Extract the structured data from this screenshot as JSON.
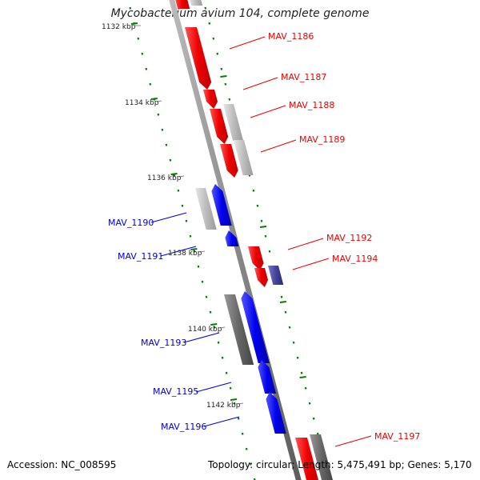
{
  "title": "Mycobacterium avium 104, complete genome",
  "accession": "Accession: NC_008595",
  "summary": "Topology: circular; Length: 5,475,491 bp; Genes: 5,170",
  "colors": {
    "forward_gene": "#ff0000",
    "reverse_gene": "#0000ff",
    "gray_feature": "#bbbbbb",
    "dark_feature": "#666666",
    "tick": "#008000"
  },
  "scale_labels": [
    "1132 kbp",
    "1134 kbp",
    "1136 kbp",
    "1138 kbp",
    "1140 kbp",
    "1142 kbp"
  ],
  "genes": [
    {
      "name": "MAV_1186",
      "strand": "forward"
    },
    {
      "name": "MAV_1187",
      "strand": "forward"
    },
    {
      "name": "MAV_1188",
      "strand": "forward"
    },
    {
      "name": "MAV_1189",
      "strand": "forward"
    },
    {
      "name": "MAV_1190",
      "strand": "reverse"
    },
    {
      "name": "MAV_1191",
      "strand": "reverse"
    },
    {
      "name": "MAV_1192",
      "strand": "forward"
    },
    {
      "name": "MAV_1194",
      "strand": "forward"
    },
    {
      "name": "MAV_1193",
      "strand": "reverse"
    },
    {
      "name": "MAV_1195",
      "strand": "reverse"
    },
    {
      "name": "MAV_1196",
      "strand": "reverse"
    },
    {
      "name": "MAV_1197",
      "strand": "forward"
    }
  ]
}
